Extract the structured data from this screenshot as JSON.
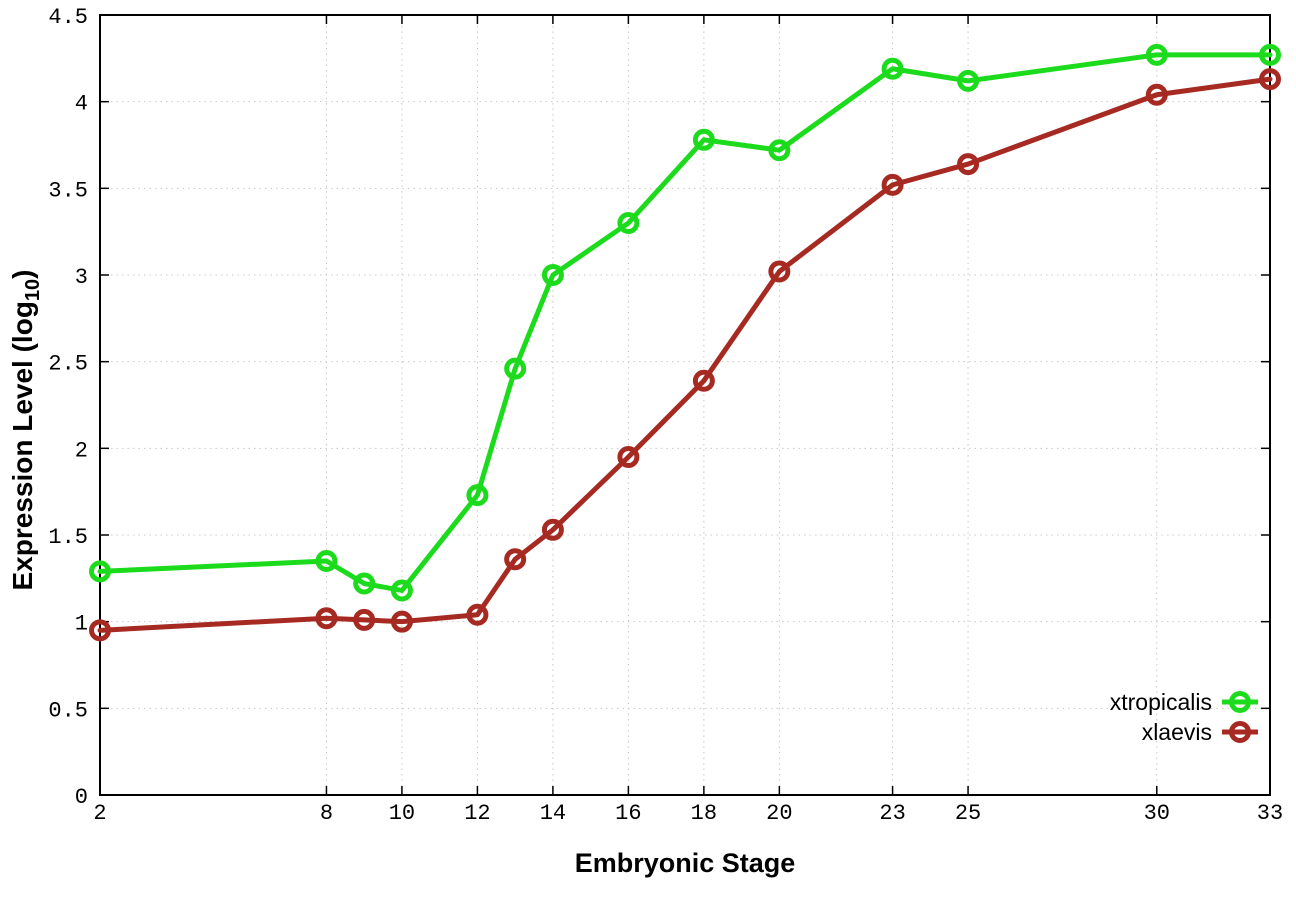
{
  "chart_data": {
    "type": "line",
    "title": "",
    "xlabel": "Embryonic Stage",
    "ylabel": "Expression Level (log10)",
    "ylabel_parts": {
      "main": "Expression Level (log",
      "sub": "10",
      "close": ")"
    },
    "x": [
      2,
      8,
      9,
      10,
      12,
      13,
      14,
      16,
      18,
      20,
      23,
      25,
      30,
      33
    ],
    "xticks": [
      2,
      8,
      10,
      12,
      14,
      16,
      18,
      20,
      23,
      25,
      30,
      33
    ],
    "yticks": [
      0,
      0.5,
      1,
      1.5,
      2,
      2.5,
      3,
      3.5,
      4,
      4.5
    ],
    "xlim": [
      2,
      33
    ],
    "ylim": [
      0,
      4.5
    ],
    "grid": true,
    "grid_style": "dotted",
    "legend_position": "inside-right-bottom",
    "marker": "open-circle",
    "series": [
      {
        "name": "xtropicalis",
        "color": "#1cdb1c",
        "values": [
          1.29,
          1.35,
          1.22,
          1.18,
          1.73,
          2.46,
          3.0,
          3.3,
          3.78,
          3.72,
          4.19,
          4.12,
          4.27,
          4.27
        ]
      },
      {
        "name": "xlaevis",
        "color": "#a62a22",
        "values": [
          0.95,
          1.02,
          1.01,
          1.0,
          1.04,
          1.36,
          1.53,
          1.95,
          2.39,
          3.02,
          3.52,
          3.64,
          4.04,
          4.13
        ]
      }
    ],
    "colors": {
      "background": "#ffffff",
      "border": "#000000",
      "grid": "#c8c8c8",
      "text": "#000000"
    }
  }
}
